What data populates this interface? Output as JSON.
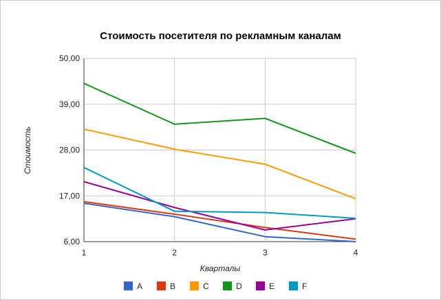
{
  "chart_data": {
    "type": "line",
    "title": "Стоимость посетителя по рекламным каналам",
    "xlabel": "Кварталы",
    "ylabel": "Стоимость",
    "x": [
      1,
      2,
      3,
      4
    ],
    "x_tick_labels": [
      "1",
      "2",
      "3",
      "4"
    ],
    "ylim": [
      6,
      50
    ],
    "y_tick_labels": [
      "50,00",
      "39,00",
      "28,00",
      "17,00",
      "6,00"
    ],
    "y_ticks": [
      50,
      39,
      28,
      17,
      6
    ],
    "grid": true,
    "legend_position": "bottom",
    "series": [
      {
        "name": "A",
        "color": "#3366cc",
        "values": [
          15.2,
          12.0,
          7.2,
          6.0
        ]
      },
      {
        "name": "B",
        "color": "#dc3912",
        "values": [
          15.6,
          12.6,
          9.4,
          6.6
        ]
      },
      {
        "name": "C",
        "color": "#ff9900",
        "values": [
          33.0,
          28.2,
          24.6,
          16.3
        ]
      },
      {
        "name": "D",
        "color": "#109618",
        "values": [
          44.0,
          34.2,
          35.6,
          27.2
        ]
      },
      {
        "name": "E",
        "color": "#990099",
        "values": [
          20.4,
          14.2,
          8.8,
          11.5
        ]
      },
      {
        "name": "F",
        "color": "#0099c6",
        "values": [
          23.8,
          13.3,
          13.0,
          11.6
        ]
      }
    ]
  }
}
